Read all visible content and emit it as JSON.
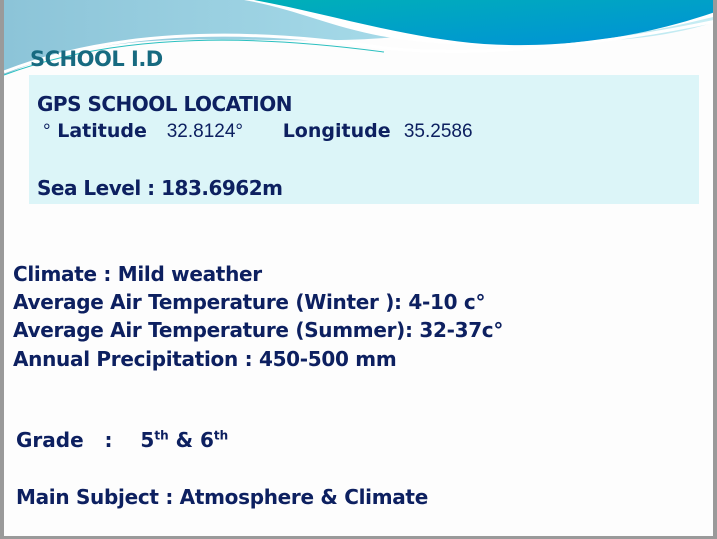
{
  "title": "SCHOOL  I.D",
  "gps": {
    "heading": "GPS SCHOOL LOCATION",
    "degree_prefix": "°",
    "latitude_label": "Latitude",
    "latitude_value": "32.8124°",
    "longitude_label": "Longitude",
    "longitude_value": "35.2586",
    "sea_level": "Sea Level : 183.6962m"
  },
  "climate": {
    "climate": "Climate  :   Mild weather",
    "winter": "Average  Air Temperature (Winter ):  4-10 c°",
    "summer": "Average  Air Temperature (Summer): 32-37c°",
    "precipitation": "Annual Precipitation :  450-500 mm"
  },
  "grade": {
    "label": "Grade   :    ",
    "g1": "5",
    "g1_sup": "th",
    "amp": " & ",
    "g2": "6",
    "g2_sup": "th"
  },
  "main_subject": "Main Subject : Atmosphere & Climate",
  "colors": {
    "text": "#0d2060",
    "title": "#176a80",
    "box": "#dcf5f8",
    "wave": "#00a3c8"
  }
}
